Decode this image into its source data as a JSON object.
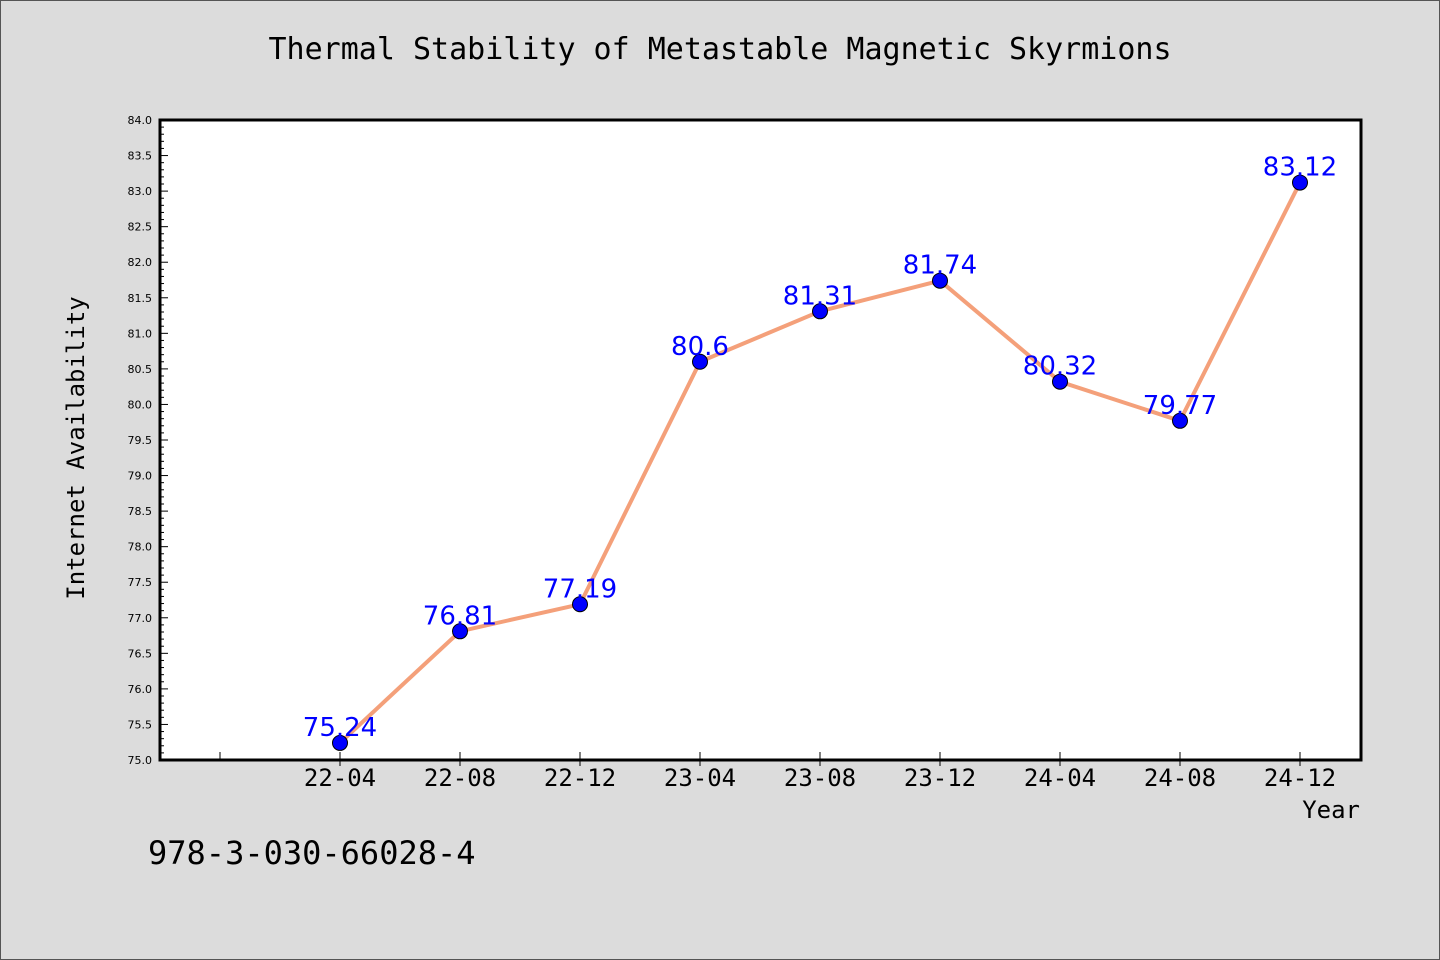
{
  "chart_data": {
    "type": "line",
    "title": "Thermal Stability of Metastable Magnetic Skyrmions",
    "xlabel": "Year",
    "ylabel": "Internet Availability",
    "categories": [
      "22-04",
      "22-08",
      "22-12",
      "23-04",
      "23-08",
      "23-12",
      "24-04",
      "24-08",
      "24-12"
    ],
    "series": [
      {
        "values": [
          75.24,
          76.81,
          77.19,
          80.6,
          81.31,
          81.74,
          80.32,
          79.77,
          83.12
        ],
        "data_labels": [
          "75.24",
          "76.81",
          "77.19",
          "80.6",
          "81.31",
          "81.74",
          "80.32",
          "79.77",
          "83.12"
        ]
      }
    ],
    "ylim": [
      75.0,
      84.0
    ],
    "yticks": [
      "75.0",
      "75.5",
      "76.0",
      "76.5",
      "77.0",
      "77.5",
      "78.0",
      "78.5",
      "79.0",
      "79.5",
      "80.0",
      "80.5",
      "81.0",
      "81.5",
      "82.0",
      "82.5",
      "83.0",
      "83.5",
      "84.0"
    ],
    "grid": false,
    "legend": "none",
    "colors": {
      "line": "#f4a07a",
      "marker": "#0000ff",
      "data_label": "#0000ff",
      "background": "#dcdcdc",
      "plot_background": "#ffffff"
    }
  },
  "footnote": "978-3-030-66028-4"
}
